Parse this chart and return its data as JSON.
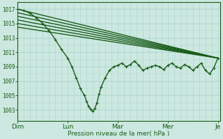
{
  "bg_color": "#cce8e0",
  "grid_color_v": "#a8d4cc",
  "grid_color_h": "#a8d4cc",
  "line_color": "#1a5c1a",
  "ylabel": "Pression niveau de la mer( hPa )",
  "yticks": [
    1003,
    1005,
    1007,
    1009,
    1011,
    1013,
    1015,
    1017
  ],
  "ylim": [
    1001.5,
    1018
  ],
  "xlim": [
    0,
    97
  ],
  "xtick_positions": [
    0,
    24,
    48,
    72,
    96
  ],
  "xtick_labels": [
    "Dim",
    "Lun",
    "Mar",
    "Mer",
    "Je"
  ],
  "figsize": [
    3.2,
    2.0
  ],
  "dpi": 100,
  "straight_lines": [
    {
      "x0": 0,
      "y0": 1017.0,
      "x1": 96,
      "y1": 1010.2
    },
    {
      "x0": 0,
      "y0": 1016.5,
      "x1": 96,
      "y1": 1010.2
    },
    {
      "x0": 0,
      "y0": 1016.0,
      "x1": 96,
      "y1": 1010.2
    },
    {
      "x0": 0,
      "y0": 1015.5,
      "x1": 96,
      "y1": 1010.2
    },
    {
      "x0": 0,
      "y0": 1015.0,
      "x1": 96,
      "y1": 1010.2
    },
    {
      "x0": 0,
      "y0": 1014.5,
      "x1": 96,
      "y1": 1010.2
    }
  ],
  "main_x": [
    0,
    3,
    6,
    9,
    12,
    15,
    18,
    21,
    24,
    26,
    28,
    30,
    32,
    33,
    34,
    35,
    36,
    37,
    38,
    39,
    40,
    42,
    44,
    46,
    48,
    50,
    52,
    54,
    56,
    58,
    60,
    62,
    64,
    66,
    68,
    70,
    72,
    74,
    76,
    78,
    80,
    82,
    84,
    86,
    88,
    90,
    92,
    94,
    96
  ],
  "main_y": [
    1017,
    1016.8,
    1016.4,
    1015.8,
    1015.0,
    1014.0,
    1012.8,
    1011.4,
    1010.2,
    1009.0,
    1007.5,
    1006.0,
    1005.0,
    1004.2,
    1003.5,
    1003.1,
    1002.8,
    1003.2,
    1004.0,
    1005.2,
    1006.2,
    1007.5,
    1008.5,
    1009.0,
    1009.2,
    1009.5,
    1009.0,
    1009.3,
    1009.8,
    1009.2,
    1008.5,
    1008.8,
    1009.0,
    1009.2,
    1009.0,
    1008.6,
    1009.2,
    1009.5,
    1009.0,
    1008.8,
    1009.3,
    1009.0,
    1008.5,
    1009.0,
    1009.5,
    1008.5,
    1008.0,
    1008.8,
    1010.2
  ]
}
